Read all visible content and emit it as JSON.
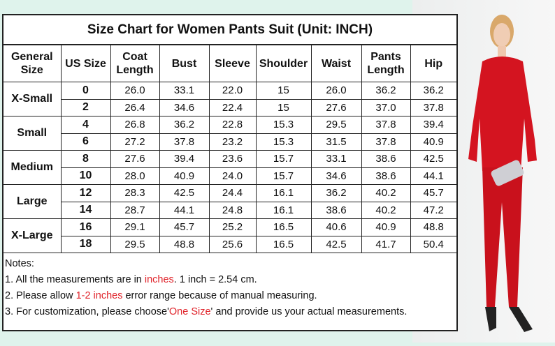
{
  "title": "Size Chart for Women Pants Suit (Unit: INCH)",
  "headers": [
    "General Size",
    "US Size",
    "Coat Length",
    "Bust",
    "Sleeve",
    "Shoulder",
    "Waist",
    "Pants Length",
    "Hip"
  ],
  "groups": [
    {
      "name": "X-Small",
      "rows": [
        [
          "0",
          "26.0",
          "33.1",
          "22.0",
          "15",
          "26.0",
          "36.2",
          "36.2"
        ],
        [
          "2",
          "26.4",
          "34.6",
          "22.4",
          "15",
          "27.6",
          "37.0",
          "37.8"
        ]
      ]
    },
    {
      "name": "Small",
      "rows": [
        [
          "4",
          "26.8",
          "36.2",
          "22.8",
          "15.3",
          "29.5",
          "37.8",
          "39.4"
        ],
        [
          "6",
          "27.2",
          "37.8",
          "23.2",
          "15.3",
          "31.5",
          "37.8",
          "40.9"
        ]
      ]
    },
    {
      "name": "Medium",
      "rows": [
        [
          "8",
          "27.6",
          "39.4",
          "23.6",
          "15.7",
          "33.1",
          "38.6",
          "42.5"
        ],
        [
          "10",
          "28.0",
          "40.9",
          "24.0",
          "15.7",
          "34.6",
          "38.6",
          "44.1"
        ]
      ]
    },
    {
      "name": "Large",
      "rows": [
        [
          "12",
          "28.3",
          "42.5",
          "24.4",
          "16.1",
          "36.2",
          "40.2",
          "45.7"
        ],
        [
          "14",
          "28.7",
          "44.1",
          "24.8",
          "16.1",
          "38.6",
          "40.2",
          "47.2"
        ]
      ]
    },
    {
      "name": "X-Large",
      "rows": [
        [
          "16",
          "29.1",
          "45.7",
          "25.2",
          "16.5",
          "40.6",
          "40.9",
          "48.8"
        ],
        [
          "18",
          "29.5",
          "48.8",
          "25.6",
          "16.5",
          "42.5",
          "41.7",
          "50.4"
        ]
      ]
    }
  ],
  "notes": {
    "heading": "Notes:",
    "n1": {
      "a": "1. All the measurements are in ",
      "b": "inches",
      "c": ". 1 inch = 2.54 cm."
    },
    "n2": {
      "a": "2. Please allow ",
      "b": "1-2 inches",
      "c": " error range because of manual measuring."
    },
    "n3": {
      "a": "3. For customization, please choose'",
      "b": "One Size",
      "c": "' and provide us your actual measurements."
    }
  },
  "colors": {
    "highlight": "#e0242b",
    "suit": "#d41420"
  }
}
